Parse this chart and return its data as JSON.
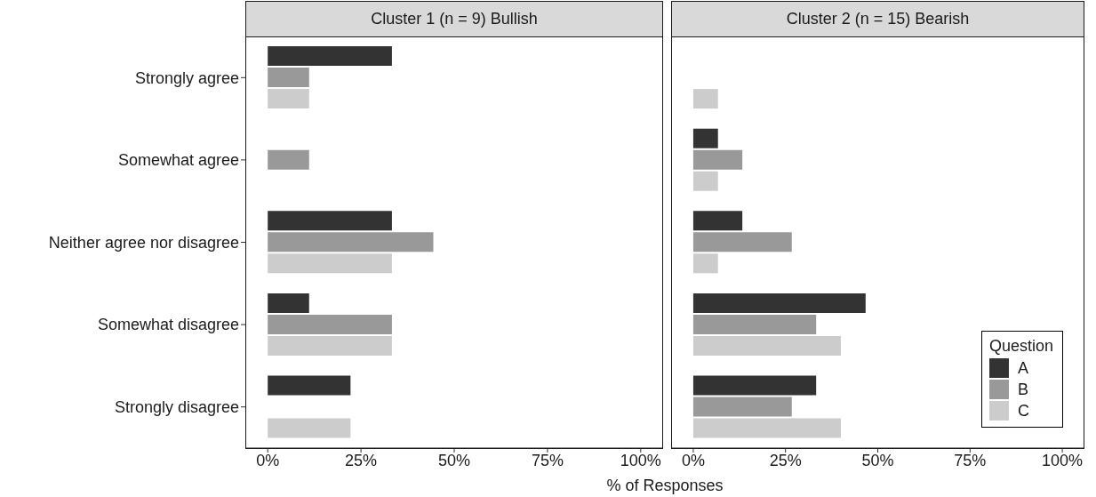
{
  "chart_data": [
    {
      "type": "bar",
      "orientation": "horizontal",
      "title": "Cluster 1 (n = 9) Bullish",
      "categories": [
        "Strongly agree",
        "Somewhat agree",
        "Neither agree nor disagree",
        "Somewhat disagree",
        "Strongly disagree"
      ],
      "series": [
        {
          "color": "#333333",
          "values": [
            33.3,
            0,
            33.3,
            11.1,
            22.2
          ]
        },
        {
          "color": "#999999",
          "values": [
            11.1,
            11.1,
            44.4,
            33.3,
            0
          ]
        },
        {
          "color": "#cccccc",
          "values": [
            11.1,
            0,
            33.3,
            33.3,
            22.2
          ]
        }
      ],
      "xlim": [
        -6,
        106
      ],
      "xticks": [
        {
          "value": 0,
          "label": "0%"
        },
        {
          "value": 25,
          "label": "25%"
        },
        {
          "value": 50,
          "label": "50%"
        },
        {
          "value": 75,
          "label": "75%"
        },
        {
          "value": 100,
          "label": "100%"
        }
      ],
      "grid": false
    },
    {
      "type": "bar",
      "orientation": "horizontal",
      "title": "Cluster 2 (n = 15) Bearish",
      "xlabel": "% of Responses",
      "legend_title": "Question",
      "legend": "bottom right",
      "tick_labels": "x",
      "categories": [
        null,
        null,
        null,
        null,
        null
      ],
      "series": [
        {
          "name": "A",
          "color": "#333333",
          "values": [
            0,
            6.7,
            13.3,
            46.7,
            33.3
          ]
        },
        {
          "name": "B",
          "color": "#999999",
          "values": [
            0,
            13.3,
            26.7,
            33.3,
            26.7
          ]
        },
        {
          "name": "C",
          "color": "#cccccc",
          "values": [
            6.7,
            6.7,
            6.7,
            40,
            40
          ]
        }
      ],
      "xlim": [
        -6,
        106
      ],
      "xticks": [
        {
          "value": 0,
          "label": "0%"
        },
        {
          "value": 25,
          "label": "25%"
        },
        {
          "value": 50,
          "label": "50%"
        },
        {
          "value": 75,
          "label": "75%"
        },
        {
          "value": 100,
          "label": "100%"
        }
      ],
      "grid": false
    }
  ]
}
